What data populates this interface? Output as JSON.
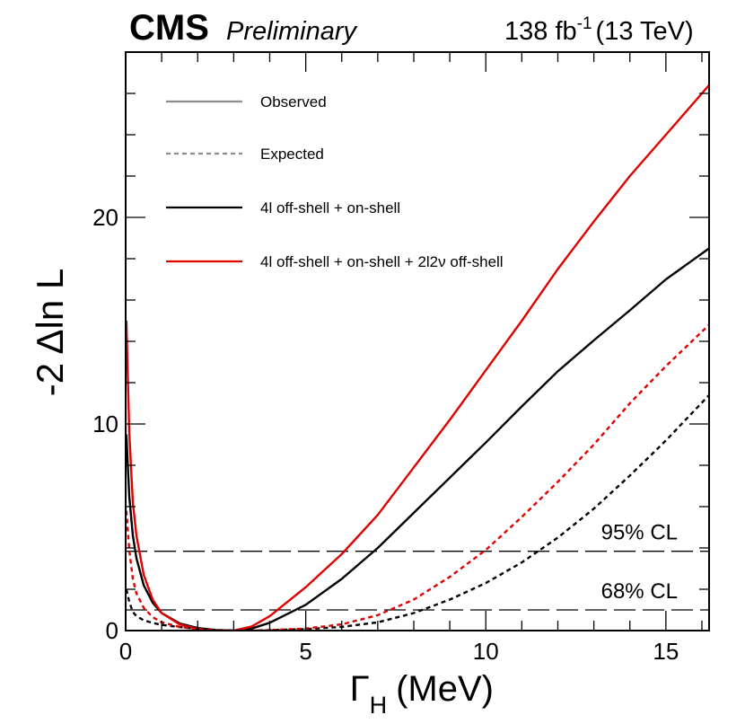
{
  "header": {
    "experiment": "CMS",
    "status": "Preliminary",
    "lumi_value": "138 fb",
    "lumi_exponent": "-1",
    "energy": "(13 TeV)"
  },
  "chart_data": {
    "type": "line",
    "xlabel_symbol": "Γ",
    "xlabel_subscript": "H",
    "xlabel_unit": "(MeV)",
    "ylabel": "-2 Δln L",
    "xlim": [
      0,
      16.2
    ],
    "ylim": [
      0,
      28
    ],
    "xticks": [
      0,
      5,
      10,
      15
    ],
    "yticks": [
      0,
      10,
      20
    ],
    "reference_lines": [
      {
        "label": "95% CL",
        "y": 3.84
      },
      {
        "label": "68% CL",
        "y": 1.0
      }
    ],
    "legend": [
      {
        "label": "Observed",
        "style": "solid",
        "color": "#8c8c8c"
      },
      {
        "label": "Expected",
        "style": "dashed",
        "color": "#8c8c8c"
      },
      {
        "label": "4l off-shell + on-shell",
        "style": "solid",
        "color": "#000000"
      },
      {
        "label": "4l off-shell + on-shell +  2l2ν off-shell",
        "style": "solid",
        "color": "#e00000"
      }
    ],
    "series": [
      {
        "group": "4l off-shell + on-shell",
        "type": "Observed",
        "color": "#000000",
        "dashed": false,
        "x": [
          0.02,
          0.1,
          0.2,
          0.3,
          0.5,
          0.75,
          1.0,
          1.5,
          2.0,
          2.5,
          3.0,
          3.5,
          4.0,
          5.0,
          6.0,
          7.0,
          8.0,
          9.0,
          10.0,
          11.0,
          12.0,
          13.0,
          14.0,
          15.0,
          16.2
        ],
        "y": [
          9.5,
          6.5,
          4.6,
          3.5,
          2.2,
          1.35,
          0.85,
          0.35,
          0.12,
          0.03,
          0.0,
          0.1,
          0.38,
          1.25,
          2.5,
          4.0,
          5.7,
          7.4,
          9.1,
          10.85,
          12.55,
          14.05,
          15.5,
          17.0,
          18.5
        ]
      },
      {
        "group": "4l off-shell + on-shell +  2l2ν off-shell",
        "type": "Observed",
        "color": "#e00000",
        "dashed": false,
        "x": [
          0.02,
          0.1,
          0.2,
          0.3,
          0.5,
          0.75,
          1.0,
          1.5,
          2.0,
          2.5,
          3.0,
          3.5,
          4.0,
          5.0,
          6.0,
          7.0,
          8.0,
          9.0,
          10.0,
          11.0,
          12.0,
          13.0,
          14.0,
          15.0,
          16.2
        ],
        "y": [
          15.0,
          9.6,
          6.2,
          4.6,
          2.7,
          1.5,
          0.85,
          0.3,
          0.08,
          0.01,
          0.0,
          0.2,
          0.7,
          2.1,
          3.7,
          5.6,
          7.9,
          10.2,
          12.6,
          15.0,
          17.5,
          19.8,
          22.0,
          24.0,
          26.4
        ]
      },
      {
        "group": "4l off-shell + on-shell",
        "type": "Expected",
        "color": "#000000",
        "dashed": true,
        "x": [
          0.02,
          0.1,
          0.2,
          0.3,
          0.5,
          0.75,
          1.0,
          1.5,
          2.0,
          2.5,
          3.0,
          3.5,
          4.0,
          5.0,
          6.0,
          7.0,
          8.0,
          9.0,
          10.0,
          11.0,
          12.0,
          13.0,
          14.0,
          15.0,
          16.2
        ],
        "y": [
          2.0,
          1.4,
          0.9,
          0.7,
          0.5,
          0.37,
          0.28,
          0.17,
          0.08,
          0.02,
          0.0,
          0.0,
          0.02,
          0.07,
          0.18,
          0.4,
          0.85,
          1.5,
          2.3,
          3.3,
          4.5,
          5.9,
          7.5,
          9.2,
          11.4
        ]
      },
      {
        "group": "4l off-shell + on-shell +  2l2ν off-shell",
        "type": "Expected",
        "color": "#e00000",
        "dashed": true,
        "x": [
          0.02,
          0.1,
          0.2,
          0.3,
          0.5,
          0.75,
          1.0,
          1.5,
          2.0,
          2.5,
          3.0,
          3.5,
          4.0,
          5.0,
          6.0,
          7.0,
          8.0,
          9.0,
          10.0,
          11.0,
          12.0,
          13.0,
          14.0,
          15.0,
          16.2
        ],
        "y": [
          5.8,
          3.9,
          2.5,
          1.8,
          1.1,
          0.65,
          0.4,
          0.18,
          0.06,
          0.01,
          0.0,
          0.0,
          0.02,
          0.1,
          0.3,
          0.75,
          1.5,
          2.6,
          3.9,
          5.5,
          7.2,
          9.0,
          11.0,
          12.8,
          14.8
        ]
      }
    ]
  }
}
